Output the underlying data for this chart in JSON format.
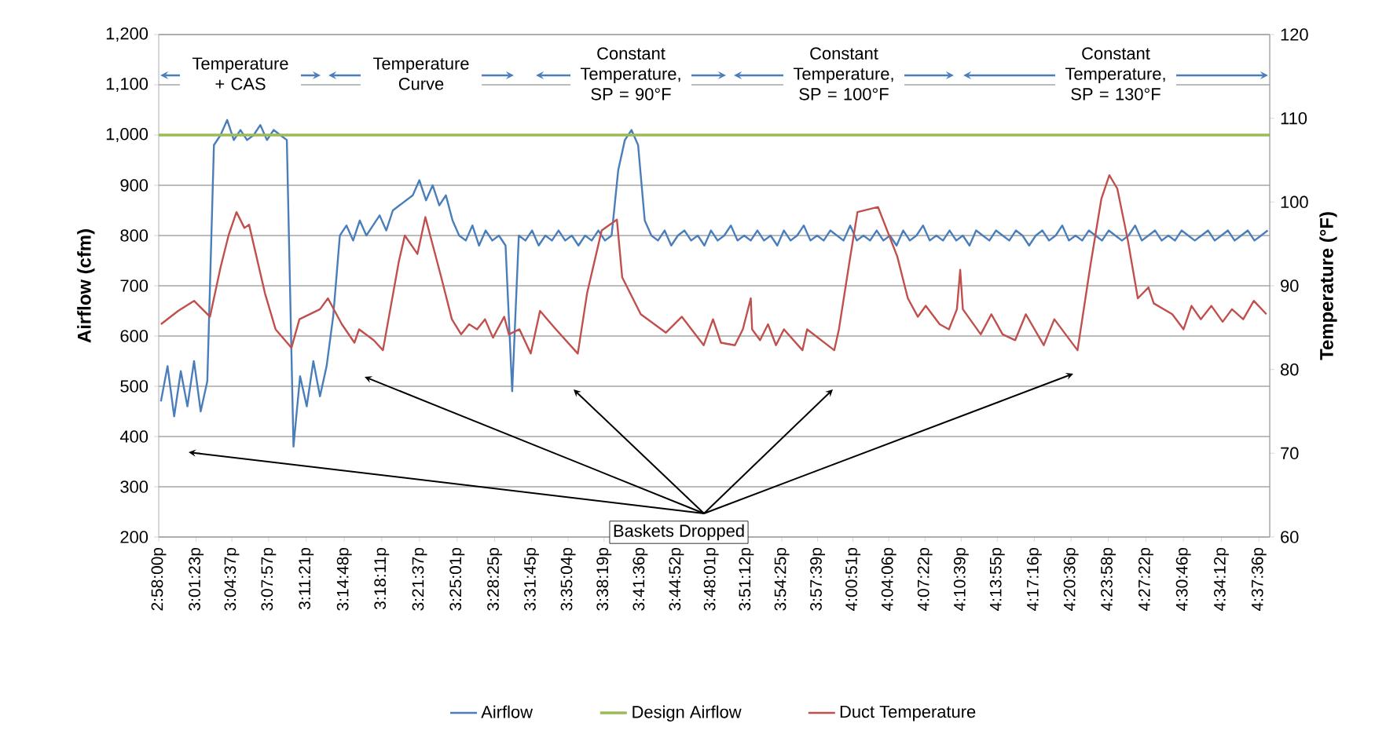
{
  "chart_data": {
    "type": "line",
    "xlabel": null,
    "ylabel": "Airflow (cfm)",
    "y2label": "Temperature (°F)",
    "xlim": [
      14.9667,
      16.643
    ],
    "xticks": [
      {
        "value": 14.9667,
        "label": "2:58:00p"
      },
      {
        "value": 15.0231,
        "label": "3:01:23p"
      },
      {
        "value": 15.0769,
        "label": "3:04:37p"
      },
      {
        "value": 15.1325,
        "label": "3:07:57p"
      },
      {
        "value": 15.1892,
        "label": "3:11:21p"
      },
      {
        "value": 15.2467,
        "label": "3:14:48p"
      },
      {
        "value": 15.3031,
        "label": "3:18:11p"
      },
      {
        "value": 15.3603,
        "label": "3:21:37p"
      },
      {
        "value": 15.4169,
        "label": "3:25:01p"
      },
      {
        "value": 15.4736,
        "label": "3:28:25p"
      },
      {
        "value": 15.5292,
        "label": "3:31:45p"
      },
      {
        "value": 15.5844,
        "label": "3:35:04p"
      },
      {
        "value": 15.6386,
        "label": "3:38:19p"
      },
      {
        "value": 15.6933,
        "label": "3:41:36p"
      },
      {
        "value": 15.7478,
        "label": "3:44:52p"
      },
      {
        "value": 15.8003,
        "label": "3:48:01p"
      },
      {
        "value": 15.8533,
        "label": "3:51:12p"
      },
      {
        "value": 15.9069,
        "label": "3:54:25p"
      },
      {
        "value": 15.9608,
        "label": "3:57:39p"
      },
      {
        "value": 16.0142,
        "label": "4:00:51p"
      },
      {
        "value": 16.0683,
        "label": "4:04:06p"
      },
      {
        "value": 16.1228,
        "label": "4:07:22p"
      },
      {
        "value": 16.1775,
        "label": "4:10:39p"
      },
      {
        "value": 16.2319,
        "label": "4:13:55p"
      },
      {
        "value": 16.2878,
        "label": "4:17:16p"
      },
      {
        "value": 16.3433,
        "label": "4:20:36p"
      },
      {
        "value": 16.3994,
        "label": "4:23:58p"
      },
      {
        "value": 16.4561,
        "label": "4:27:22p"
      },
      {
        "value": 16.5128,
        "label": "4:30:46p"
      },
      {
        "value": 16.57,
        "label": "4:34:12p"
      },
      {
        "value": 16.6267,
        "label": "4:37:36p"
      }
    ],
    "ylim": [
      200,
      1200
    ],
    "yticks": [
      200,
      300,
      400,
      500,
      600,
      700,
      800,
      900,
      {
        "value": 1000,
        "label": "1,000"
      },
      {
        "value": 1100,
        "label": "1,100"
      },
      {
        "value": 1200,
        "label": "1,200"
      }
    ],
    "y2lim": [
      60,
      120
    ],
    "y2ticks": [
      60,
      70,
      80,
      90,
      100,
      110,
      120
    ],
    "grid": "y",
    "legend": "bottom",
    "annotations": [
      "Temperature + CAS",
      "Temperature Curve",
      "Constant Temperature, SP = 90°F",
      "Constant Temperature, SP = 100°F",
      "Constant Temperature, SP = 130°F",
      "Baskets Dropped"
    ],
    "series": [
      {
        "name": "Airflow",
        "color": "#4a7ebb",
        "x": [
          14.97,
          14.98,
          14.99,
          15.0,
          15.01,
          15.02,
          15.03,
          15.04,
          15.05,
          15.06,
          15.07,
          15.08,
          15.09,
          15.1,
          15.11,
          15.12,
          15.13,
          15.14,
          15.15,
          15.16,
          15.17,
          15.18,
          15.19,
          15.2,
          15.21,
          15.22,
          15.23,
          15.24,
          15.25,
          15.26,
          15.27,
          15.28,
          15.29,
          15.3,
          15.31,
          15.32,
          15.33,
          15.34,
          15.35,
          15.36,
          15.37,
          15.38,
          15.39,
          15.4,
          15.41,
          15.42,
          15.43,
          15.44,
          15.45,
          15.46,
          15.47,
          15.48,
          15.49,
          15.5,
          15.51,
          15.52,
          15.53,
          15.54,
          15.55,
          15.56,
          15.57,
          15.58,
          15.59,
          15.6,
          15.61,
          15.62,
          15.63,
          15.64,
          15.65,
          15.66,
          15.67,
          15.68,
          15.69,
          15.7,
          15.71,
          15.72,
          15.73,
          15.74,
          15.75,
          15.76,
          15.77,
          15.78,
          15.79,
          15.8,
          15.81,
          15.82,
          15.83,
          15.84,
          15.85,
          15.86,
          15.87,
          15.88,
          15.89,
          15.9,
          15.91,
          15.92,
          15.93,
          15.94,
          15.95,
          15.96,
          15.97,
          15.98,
          15.99,
          16.0,
          16.01,
          16.02,
          16.03,
          16.04,
          16.05,
          16.06,
          16.07,
          16.08,
          16.09,
          16.1,
          16.11,
          16.12,
          16.13,
          16.14,
          16.15,
          16.16,
          16.17,
          16.18,
          16.19,
          16.2,
          16.21,
          16.22,
          16.23,
          16.24,
          16.25,
          16.26,
          16.27,
          16.28,
          16.29,
          16.3,
          16.31,
          16.32,
          16.33,
          16.34,
          16.35,
          16.36,
          16.37,
          16.38,
          16.39,
          16.4,
          16.41,
          16.42,
          16.43,
          16.44,
          16.45,
          16.46,
          16.47,
          16.48,
          16.49,
          16.5,
          16.51,
          16.52,
          16.53,
          16.54,
          16.55,
          16.56,
          16.57,
          16.58,
          16.59,
          16.6,
          16.61,
          16.62,
          16.63,
          16.64
        ],
        "values": [
          470,
          540,
          440,
          530,
          460,
          550,
          450,
          510,
          980,
          1000,
          1030,
          990,
          1010,
          990,
          1000,
          1020,
          990,
          1010,
          1000,
          990,
          380,
          520,
          460,
          550,
          480,
          540,
          640,
          800,
          820,
          790,
          830,
          800,
          820,
          840,
          810,
          850,
          860,
          870,
          880,
          910,
          870,
          900,
          860,
          880,
          830,
          800,
          790,
          820,
          780,
          810,
          790,
          800,
          780,
          490,
          800,
          790,
          810,
          780,
          800,
          790,
          810,
          790,
          800,
          780,
          800,
          790,
          810,
          790,
          800,
          930,
          990,
          1010,
          980,
          830,
          800,
          790,
          810,
          780,
          800,
          810,
          790,
          800,
          780,
          810,
          790,
          800,
          820,
          790,
          800,
          790,
          810,
          790,
          800,
          780,
          810,
          790,
          800,
          820,
          790,
          800,
          790,
          810,
          800,
          790,
          820,
          790,
          800,
          790,
          810,
          790,
          800,
          780,
          810,
          790,
          800,
          820,
          790,
          800,
          790,
          810,
          790,
          800,
          780,
          810,
          800,
          790,
          810,
          800,
          790,
          810,
          800,
          780,
          800,
          810,
          790,
          800,
          820,
          790,
          800,
          790,
          810,
          800,
          790,
          810,
          800,
          790,
          800,
          820,
          790,
          800,
          810,
          790,
          800,
          790,
          810,
          800,
          790,
          800,
          810,
          790,
          800,
          810,
          790,
          800,
          810,
          790,
          800,
          810
        ]
      },
      {
        "name": "Design Airflow",
        "color": "#9bbb59",
        "x": [
          14.9667,
          16.643
        ],
        "values": [
          1000,
          1000
        ]
      },
      {
        "name": "Duct Temperature",
        "color": "#c0504d",
        "axis": "y2",
        "x": [
          14.97,
          14.996,
          15.02,
          15.044,
          15.06,
          15.072,
          15.084,
          15.096,
          15.103,
          15.127,
          15.143,
          15.167,
          15.179,
          15.21,
          15.222,
          15.243,
          15.262,
          15.269,
          15.291,
          15.305,
          15.329,
          15.338,
          15.357,
          15.369,
          15.393,
          15.409,
          15.423,
          15.435,
          15.447,
          15.459,
          15.471,
          15.488,
          15.495,
          15.511,
          15.528,
          15.542,
          15.566,
          15.599,
          15.613,
          15.635,
          15.658,
          15.666,
          15.694,
          15.732,
          15.756,
          15.789,
          15.803,
          15.815,
          15.836,
          15.848,
          15.86,
          15.862,
          15.874,
          15.886,
          15.898,
          15.91,
          15.938,
          15.945,
          15.986,
          15.993,
          16.009,
          16.021,
          16.052,
          16.081,
          16.097,
          16.112,
          16.124,
          16.145,
          16.159,
          16.171,
          16.176,
          16.18,
          16.207,
          16.223,
          16.24,
          16.259,
          16.275,
          16.302,
          16.318,
          16.353,
          16.372,
          16.389,
          16.401,
          16.413,
          16.429,
          16.444,
          16.46,
          16.468,
          16.496,
          16.513,
          16.525,
          16.539,
          16.555,
          16.572,
          16.586,
          16.603,
          16.619,
          16.638
        ],
        "values": [
          85.4,
          87.0,
          88.2,
          86.3,
          92.2,
          96.0,
          98.8,
          96.9,
          97.3,
          89.1,
          84.8,
          82.6,
          86.0,
          87.2,
          88.5,
          85.4,
          83.2,
          84.8,
          83.5,
          82.3,
          92.9,
          96.0,
          93.8,
          98.2,
          91.0,
          86.0,
          84.2,
          85.4,
          84.8,
          86.0,
          83.8,
          86.3,
          84.2,
          84.8,
          81.9,
          87.0,
          84.8,
          81.9,
          89.1,
          96.6,
          97.9,
          91.0,
          86.6,
          84.4,
          86.3,
          82.9,
          86.0,
          83.2,
          82.9,
          84.8,
          88.5,
          84.8,
          83.5,
          85.4,
          82.9,
          84.8,
          82.3,
          84.8,
          82.3,
          84.8,
          92.9,
          98.8,
          99.4,
          93.5,
          88.5,
          86.3,
          87.6,
          85.4,
          84.8,
          87.2,
          91.9,
          87.2,
          84.2,
          86.6,
          84.2,
          83.5,
          86.6,
          82.9,
          86.0,
          82.3,
          92.2,
          100.4,
          103.2,
          101.6,
          95.4,
          88.5,
          89.8,
          87.9,
          86.6,
          84.8,
          87.6,
          86.0,
          87.6,
          85.7,
          87.2,
          86.0,
          88.2,
          86.6
        ]
      }
    ]
  }
}
